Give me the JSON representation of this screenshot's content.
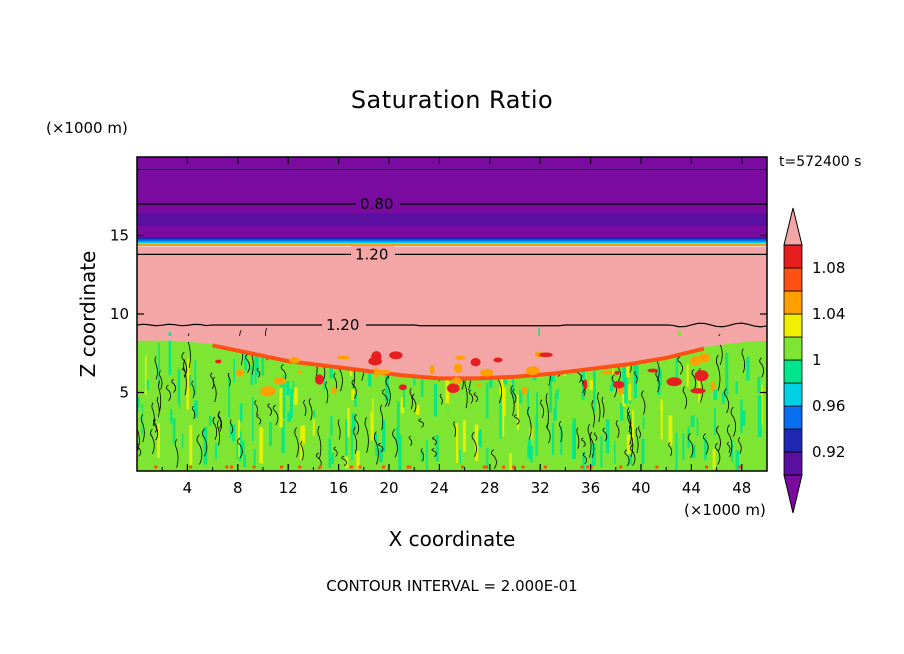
{
  "chart_data": {
    "type": "heatmap",
    "title": "Saturation Ratio",
    "xlabel": "X coordinate",
    "ylabel": "Z coordinate",
    "x_unit": "(×1000 m)",
    "y_unit": "(×1000 m)",
    "time_label": "t=572400 s",
    "footnote": "CONTOUR INTERVAL = 2.000E-01",
    "xlim": [
      0,
      50
    ],
    "ylim": [
      0,
      20
    ],
    "x_ticks": [
      4,
      8,
      12,
      16,
      20,
      24,
      28,
      32,
      36,
      40,
      44,
      48
    ],
    "y_ticks": [
      5,
      10,
      15
    ],
    "colorbar": {
      "labels": [
        "1.08",
        "1.04",
        "1",
        "0.96",
        "0.92"
      ],
      "label_values": [
        1.08,
        1.04,
        1.0,
        0.96,
        0.92
      ],
      "levels": [
        0.9,
        0.92,
        0.94,
        0.96,
        0.98,
        1.0,
        1.02,
        1.04,
        1.06,
        1.08,
        1.1
      ],
      "colors": [
        "#5a0fa0",
        "#1e28b4",
        "#0a6ef0",
        "#00d2e6",
        "#00e68c",
        "#7ee632",
        "#f0f000",
        "#ffa000",
        "#ff5014",
        "#e61e1e"
      ],
      "under_color": "#7a0aa0",
      "over_color": "#f4a6a6",
      "extend": "both"
    },
    "contour_lines": [
      {
        "label": "0.80",
        "z": 17.0
      },
      {
        "label": "1.20",
        "z": 13.8
      },
      {
        "label": "1.20",
        "z": 9.3
      }
    ],
    "regions": {
      "upper_layer_top": 20,
      "upper_layer_bottom": 14.4,
      "moist_layer_bottom": 8.3,
      "turbulent_layer_top": 8.3
    }
  }
}
